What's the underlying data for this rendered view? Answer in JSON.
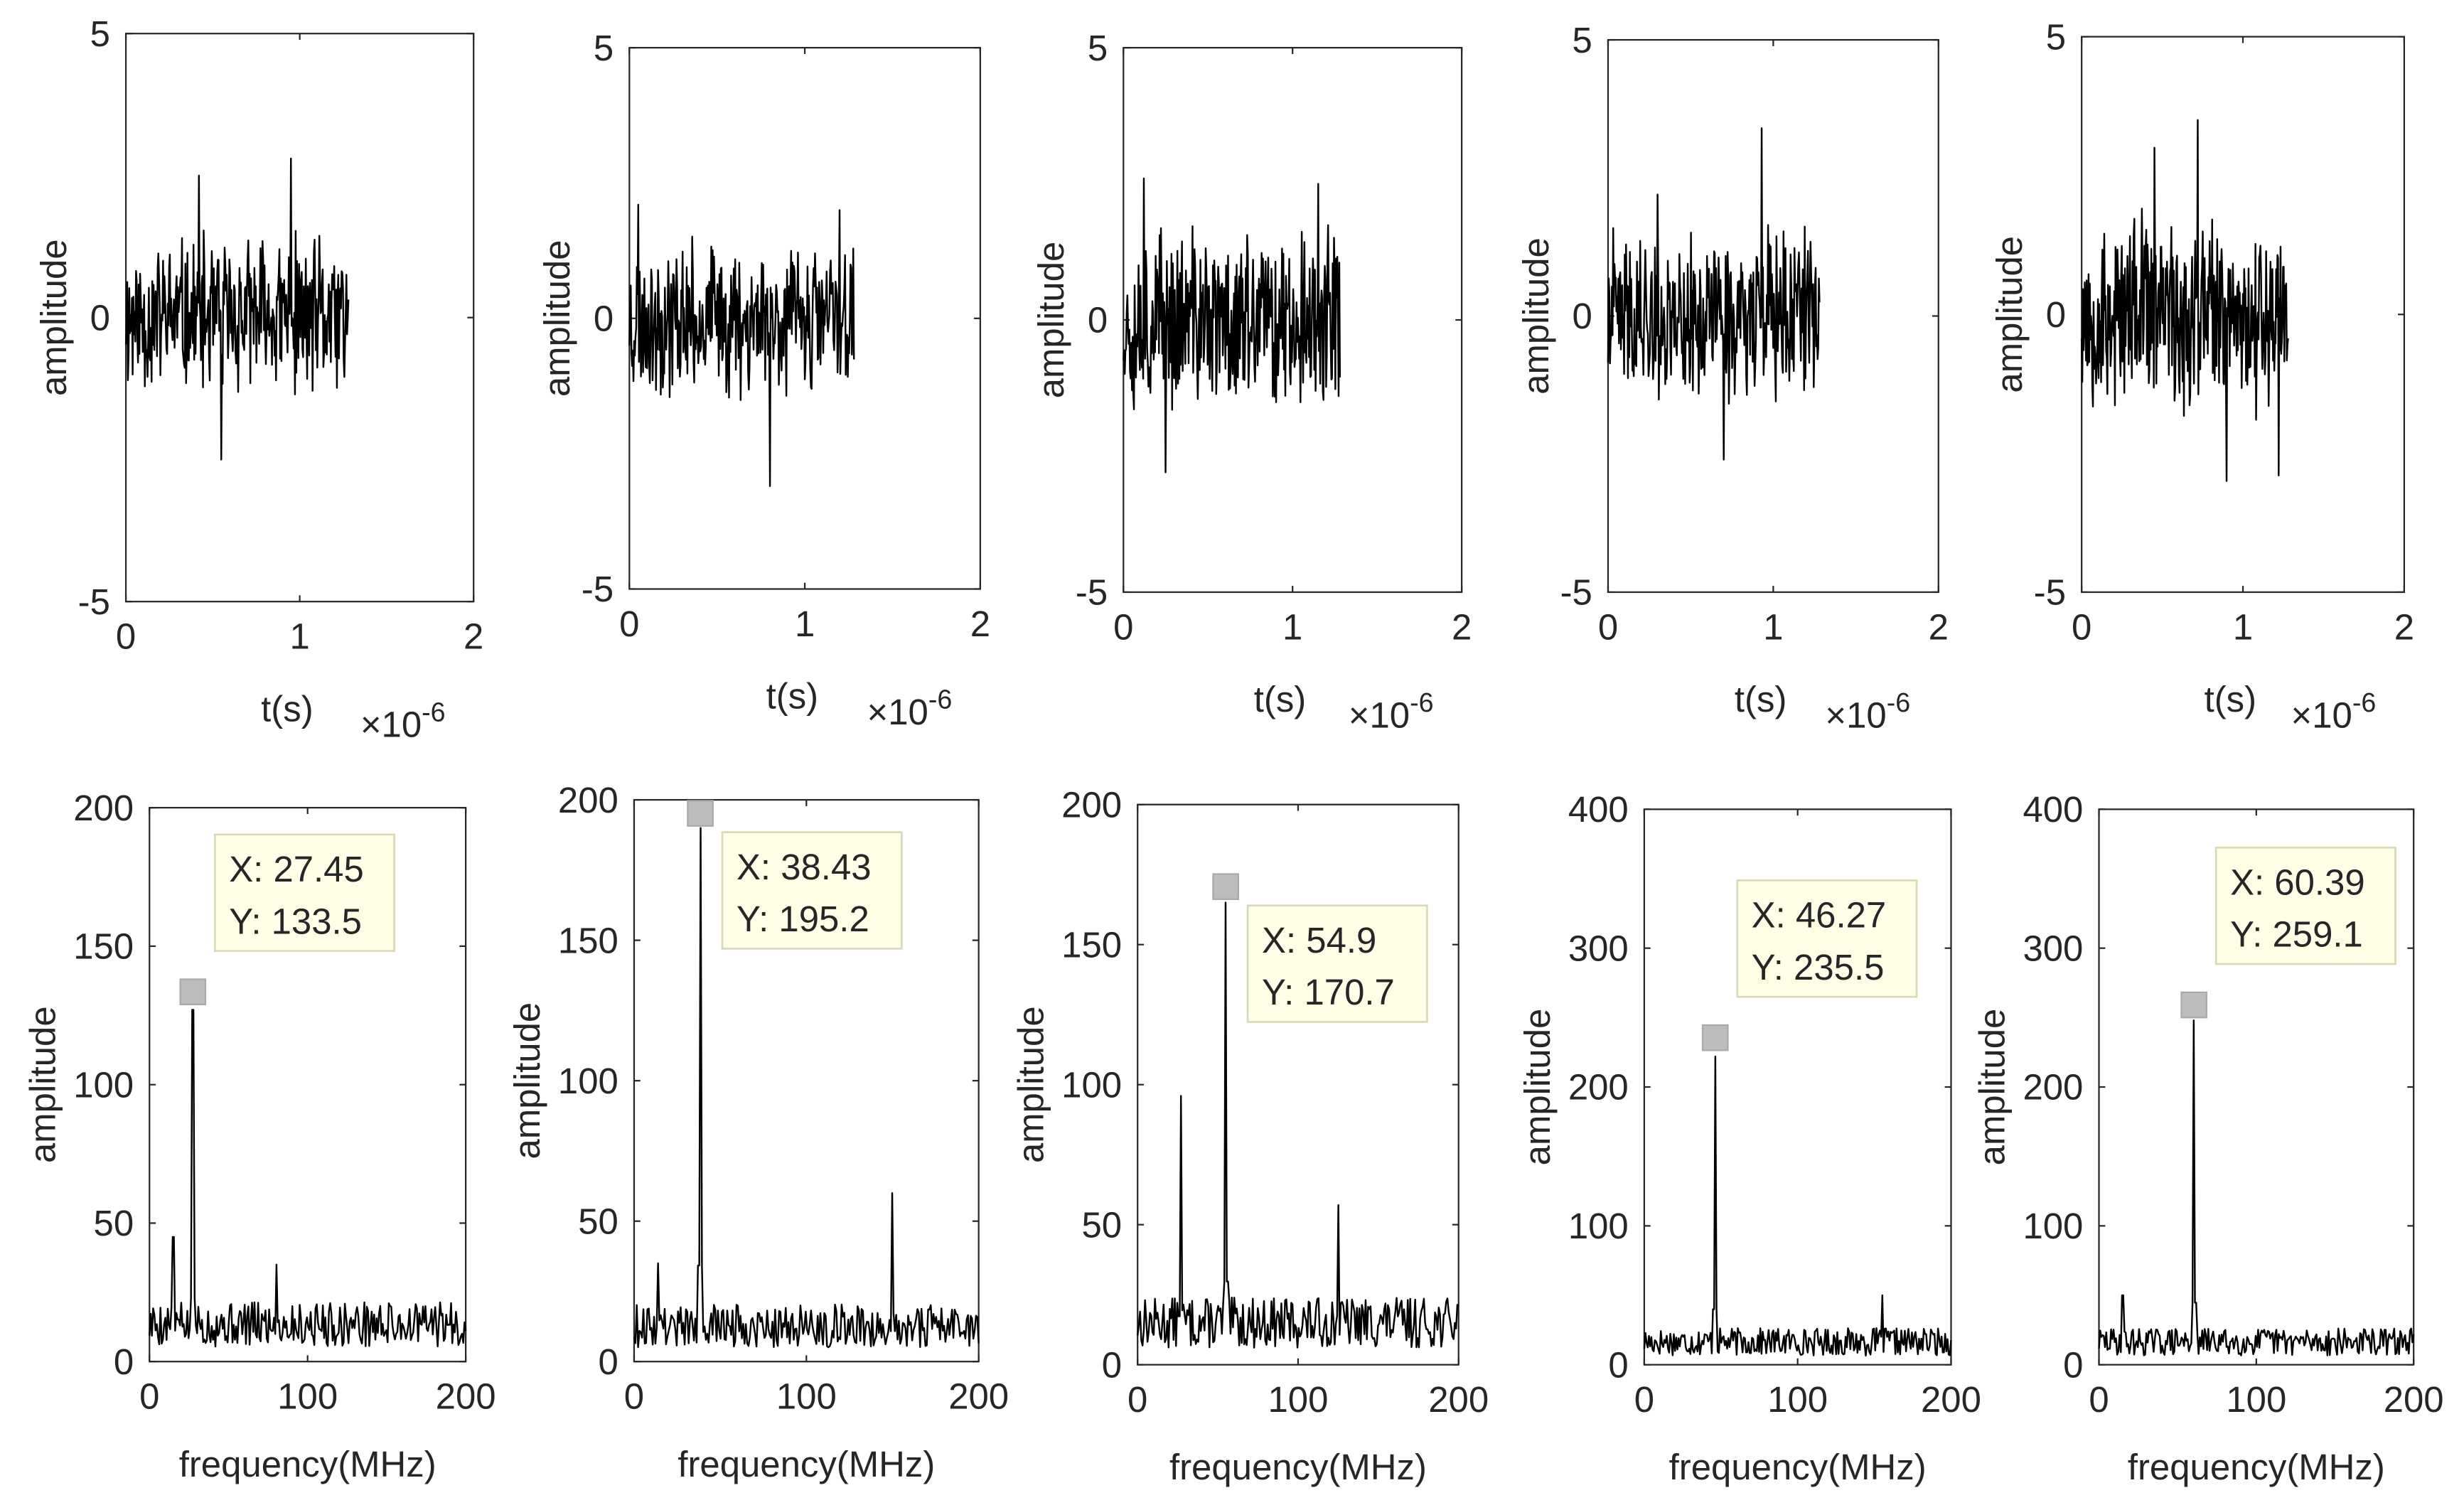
{
  "chart_data": [
    {
      "type": "line",
      "panel": "time-1",
      "row": 0,
      "xlabel": "t(s)",
      "ylabel": "amplitude",
      "xlim": [
        0,
        2
      ],
      "ylim": [
        -5,
        5
      ],
      "xticks": [
        "0",
        "1",
        "2"
      ],
      "yticks": [
        "-5",
        "0",
        "5"
      ],
      "xmultiplier": {
        "base": "×10",
        "exp": "-6"
      },
      "signal": {
        "x_end": 1.28,
        "band": 1.6,
        "seed": 11,
        "spikes": [
          [
            0.95,
            2.8
          ],
          [
            0.55,
            -2.5
          ],
          [
            0.42,
            2.5
          ]
        ]
      }
    },
    {
      "type": "line",
      "panel": "time-2",
      "row": 0,
      "xlabel": "t(s)",
      "ylabel": "amplitude",
      "xlim": [
        0,
        2
      ],
      "ylim": [
        -5,
        5
      ],
      "xticks": [
        "0",
        "1",
        "2"
      ],
      "yticks": [
        "-5",
        "0",
        "5"
      ],
      "xmultiplier": {
        "base": "×10",
        "exp": "-6"
      },
      "signal": {
        "x_end": 1.28,
        "band": 1.6,
        "seed": 23,
        "spikes": [
          [
            0.8,
            -3.1
          ],
          [
            0.05,
            2.1
          ],
          [
            1.2,
            2.0
          ]
        ]
      }
    },
    {
      "type": "line",
      "panel": "time-3",
      "row": 0,
      "xlabel": "t(s)",
      "ylabel": "amplitude",
      "xlim": [
        0,
        2
      ],
      "ylim": [
        -5,
        5
      ],
      "xticks": [
        "0",
        "1",
        "2"
      ],
      "yticks": [
        "-5",
        "0",
        "5"
      ],
      "xmultiplier": {
        "base": "×10",
        "exp": "-6"
      },
      "signal": {
        "x_end": 1.28,
        "band": 1.9,
        "seed": 37,
        "spikes": [
          [
            0.12,
            2.6
          ],
          [
            0.25,
            -2.8
          ],
          [
            1.15,
            2.5
          ]
        ]
      }
    },
    {
      "type": "line",
      "panel": "time-4",
      "row": 0,
      "xlabel": "t(s)",
      "ylabel": "amplitude",
      "xlim": [
        0,
        2
      ],
      "ylim": [
        -5,
        5
      ],
      "xticks": [
        "0",
        "1",
        "2"
      ],
      "yticks": [
        "-5",
        "0",
        "5"
      ],
      "xmultiplier": {
        "base": "×10",
        "exp": "-6"
      },
      "signal": {
        "x_end": 1.28,
        "band": 1.7,
        "seed": 41,
        "spikes": [
          [
            0.93,
            3.4
          ],
          [
            0.7,
            -2.6
          ],
          [
            0.3,
            2.2
          ]
        ]
      }
    },
    {
      "type": "line",
      "panel": "time-5",
      "row": 0,
      "xlabel": "t(s)",
      "ylabel": "amplitude",
      "xlim": [
        0,
        2
      ],
      "ylim": [
        -5,
        5
      ],
      "xticks": [
        "0",
        "1",
        "2"
      ],
      "yticks": [
        "-5",
        "0",
        "5"
      ],
      "xmultiplier": {
        "base": "×10",
        "exp": "-6"
      },
      "signal": {
        "x_end": 1.28,
        "band": 2.0,
        "seed": 53,
        "spikes": [
          [
            0.72,
            3.5
          ],
          [
            0.9,
            -3.0
          ],
          [
            1.22,
            -2.9
          ],
          [
            0.45,
            3.0
          ]
        ]
      }
    },
    {
      "type": "line",
      "panel": "spectrum-1",
      "row": 1,
      "xlabel": "frequency(MHz)",
      "ylabel": "amplitude",
      "xlim": [
        0,
        200
      ],
      "ylim": [
        0,
        200
      ],
      "xticks": [
        "0",
        "100",
        "200"
      ],
      "yticks": [
        "0",
        "50",
        "100",
        "150",
        "200"
      ],
      "peaks": [
        [
          27.45,
          127
        ],
        [
          80,
          35
        ],
        [
          15,
          45
        ]
      ],
      "noise_base": 18,
      "seed": 5,
      "datatip": {
        "x": 27.45,
        "y": 133.5,
        "label_x": "X: 27.45",
        "label_y": "Y: 133.5",
        "box": "upper-right"
      }
    },
    {
      "type": "line",
      "panel": "spectrum-2",
      "row": 1,
      "xlabel": "frequency(MHz)",
      "ylabel": "amplitude",
      "xlim": [
        0,
        200
      ],
      "ylim": [
        0,
        200
      ],
      "xticks": [
        "0",
        "100",
        "200"
      ],
      "yticks": [
        "0",
        "50",
        "100",
        "150",
        "200"
      ],
      "peaks": [
        [
          38.43,
          190
        ],
        [
          150,
          60
        ],
        [
          14,
          35
        ]
      ],
      "noise_base": 17,
      "seed": 9,
      "datatip": {
        "x": 38.43,
        "y": 195.2,
        "label_x": "X: 38.43",
        "label_y": "Y: 195.2",
        "box": "right"
      }
    },
    {
      "type": "line",
      "panel": "spectrum-3",
      "row": 1,
      "xlabel": "frequency(MHz)",
      "ylabel": "amplitude",
      "xlim": [
        0,
        200
      ],
      "ylim": [
        0,
        200
      ],
      "xticks": [
        "0",
        "100",
        "200"
      ],
      "yticks": [
        "0",
        "50",
        "100",
        "150",
        "200"
      ],
      "peaks": [
        [
          54.9,
          165
        ],
        [
          27,
          96
        ],
        [
          125,
          57
        ]
      ],
      "noise_base": 20,
      "seed": 13,
      "datatip": {
        "x": 54.9,
        "y": 170.7,
        "label_x": "X: 54.9",
        "label_y": "Y: 170.7",
        "box": "right-low"
      }
    },
    {
      "type": "line",
      "panel": "spectrum-4",
      "row": 1,
      "xlabel": "frequency(MHz)",
      "ylabel": "amplitude",
      "xlim": [
        0,
        200
      ],
      "ylim": [
        0,
        400
      ],
      "xticks": [
        "0",
        "100",
        "200"
      ],
      "yticks": [
        "0",
        "100",
        "200",
        "300",
        "400"
      ],
      "peaks": [
        [
          46.27,
          222
        ],
        [
          155,
          50
        ]
      ],
      "noise_base": 22,
      "seed": 17,
      "datatip": {
        "x": 46.27,
        "y": 235.5,
        "label_x": "X: 46.27",
        "label_y": "Y: 235.5",
        "box": "upper-right"
      }
    },
    {
      "type": "line",
      "panel": "spectrum-5",
      "row": 1,
      "xlabel": "frequency(MHz)",
      "ylabel": "amplitude",
      "xlim": [
        0,
        200
      ],
      "ylim": [
        0,
        400
      ],
      "xticks": [
        "0",
        "100",
        "200"
      ],
      "yticks": [
        "0",
        "100",
        "200",
        "300",
        "400"
      ],
      "peaks": [
        [
          60.39,
          248
        ],
        [
          15,
          50
        ]
      ],
      "noise_base": 22,
      "seed": 29,
      "datatip": {
        "x": 60.39,
        "y": 259.1,
        "label_x": "X: 60.39",
        "label_y": "Y: 259.1",
        "box": "upper-right"
      }
    }
  ]
}
